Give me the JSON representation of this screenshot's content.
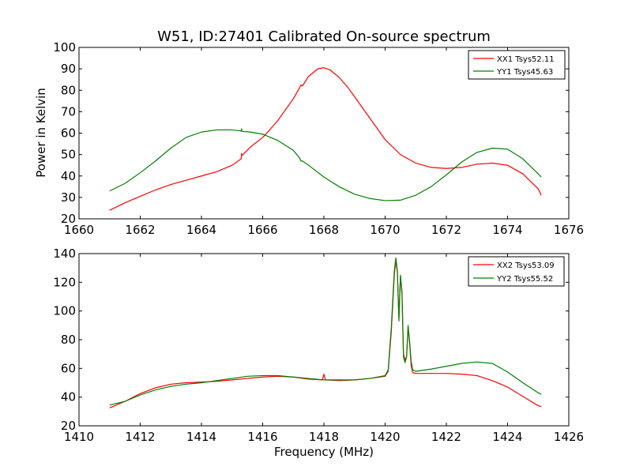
{
  "chart_data": [
    {
      "type": "line",
      "title": "W51, ID:27401 Calibrated On-source spectrum",
      "xlabel": "",
      "ylabel": "Power in Kelvin",
      "xlim": [
        1660,
        1676
      ],
      "ylim": [
        20,
        100
      ],
      "xticks": [
        1660,
        1662,
        1664,
        1666,
        1668,
        1670,
        1672,
        1674,
        1676
      ],
      "yticks": [
        20,
        30,
        40,
        50,
        60,
        70,
        80,
        90,
        100
      ],
      "legend_position": "top-right",
      "series": [
        {
          "name": "XX1 Tsys52.11",
          "color": "#ff0000",
          "x": [
            1661.0,
            1661.5,
            1662.0,
            1662.5,
            1663.0,
            1663.5,
            1664.0,
            1664.5,
            1665.0,
            1665.3,
            1665.31,
            1665.32,
            1665.6,
            1666.0,
            1666.2,
            1666.5,
            1666.8,
            1667.0,
            1667.2,
            1667.25,
            1667.3,
            1667.5,
            1667.8,
            1668.0,
            1668.2,
            1668.5,
            1668.8,
            1669.0,
            1669.5,
            1670.0,
            1670.5,
            1671.0,
            1671.5,
            1672.0,
            1672.5,
            1673.0,
            1673.5,
            1674.0,
            1674.5,
            1675.0,
            1675.1
          ],
          "y": [
            24,
            27.5,
            30.5,
            33.5,
            36,
            38,
            40,
            42,
            45,
            48,
            50.5,
            49.5,
            53.5,
            58,
            61,
            66,
            72,
            76,
            81,
            82.5,
            82,
            86.5,
            90,
            90.5,
            89.5,
            86,
            81,
            77,
            67,
            57,
            50,
            46,
            44,
            43.5,
            44,
            45.5,
            46,
            45,
            41,
            34,
            31
          ]
        },
        {
          "name": "YY1 Tsys45.63",
          "color": "#008000",
          "x": [
            1661.0,
            1661.5,
            1662.0,
            1662.5,
            1663.0,
            1663.5,
            1664.0,
            1664.5,
            1665.0,
            1665.3,
            1665.31,
            1665.32,
            1665.6,
            1666.0,
            1666.5,
            1667.0,
            1667.2,
            1667.25,
            1667.3,
            1667.5,
            1668.0,
            1668.5,
            1669.0,
            1669.5,
            1670.0,
            1670.5,
            1671.0,
            1671.5,
            1672.0,
            1672.5,
            1673.0,
            1673.5,
            1674.0,
            1674.5,
            1675.0,
            1675.1
          ],
          "y": [
            33,
            36.5,
            41.5,
            47,
            53,
            58,
            60.5,
            61.5,
            61.5,
            61,
            62,
            60.8,
            60.5,
            59.5,
            56.5,
            52,
            48.5,
            47,
            47,
            45,
            39.5,
            35,
            31.5,
            29.5,
            28.5,
            28.7,
            31,
            35,
            40.5,
            46.5,
            51,
            53,
            52.5,
            48,
            41,
            39.5
          ]
        }
      ]
    },
    {
      "type": "line",
      "title": "",
      "xlabel": "Frequency (MHz)",
      "ylabel": "",
      "xlim": [
        1410,
        1426
      ],
      "ylim": [
        20,
        140
      ],
      "xticks": [
        1410,
        1412,
        1414,
        1416,
        1418,
        1420,
        1422,
        1424,
        1426
      ],
      "yticks": [
        20,
        40,
        60,
        80,
        100,
        120,
        140
      ],
      "legend_position": "top-right",
      "series": [
        {
          "name": "XX2 Tsys53.09",
          "color": "#ff0000",
          "x": [
            1411.0,
            1411.5,
            1412.0,
            1412.5,
            1413.0,
            1413.5,
            1414.0,
            1414.5,
            1415.0,
            1415.5,
            1416.0,
            1416.5,
            1417.0,
            1417.5,
            1417.95,
            1418.0,
            1418.05,
            1418.5,
            1419.0,
            1419.5,
            1420.0,
            1420.1,
            1420.2,
            1420.3,
            1420.35,
            1420.4,
            1420.45,
            1420.5,
            1420.55,
            1420.6,
            1420.65,
            1420.7,
            1420.75,
            1420.8,
            1420.85,
            1420.9,
            1421.0,
            1421.5,
            1422.0,
            1422.5,
            1423.0,
            1423.5,
            1424.0,
            1424.5,
            1425.0,
            1425.1
          ],
          "y": [
            32.5,
            37,
            42.5,
            46.5,
            49,
            50,
            50.5,
            51,
            52,
            53,
            54,
            54.5,
            54,
            52.5,
            52,
            56,
            52,
            51.5,
            52,
            53,
            54.5,
            58,
            85,
            125,
            135,
            127,
            95,
            124,
            112,
            70,
            66,
            68,
            88,
            78,
            62,
            57,
            56.5,
            56.5,
            56.5,
            56,
            55,
            51.5,
            47,
            40.5,
            34,
            33.5
          ]
        },
        {
          "name": "YY2 Tsys55.52",
          "color": "#008000",
          "x": [
            1411.0,
            1411.5,
            1412.0,
            1412.5,
            1413.0,
            1413.5,
            1414.0,
            1414.5,
            1415.0,
            1415.5,
            1416.0,
            1416.5,
            1417.0,
            1417.5,
            1418.0,
            1418.5,
            1419.0,
            1419.5,
            1420.0,
            1420.1,
            1420.2,
            1420.3,
            1420.35,
            1420.4,
            1420.45,
            1420.5,
            1420.55,
            1420.6,
            1420.65,
            1420.7,
            1420.75,
            1420.8,
            1420.85,
            1420.9,
            1421.0,
            1421.5,
            1422.0,
            1422.5,
            1423.0,
            1423.5,
            1424.0,
            1424.5,
            1425.0,
            1425.1
          ],
          "y": [
            34.5,
            37,
            41.5,
            45,
            47.5,
            49,
            50,
            51.5,
            53,
            54.5,
            55,
            55,
            54,
            53,
            52,
            52,
            52,
            53,
            55,
            59,
            88,
            128,
            137,
            128,
            93,
            125,
            114,
            68,
            64,
            68,
            90,
            79,
            65,
            59,
            58,
            59.5,
            61.5,
            63.5,
            64.5,
            63.5,
            57.5,
            50,
            43,
            42
          ]
        }
      ]
    }
  ]
}
